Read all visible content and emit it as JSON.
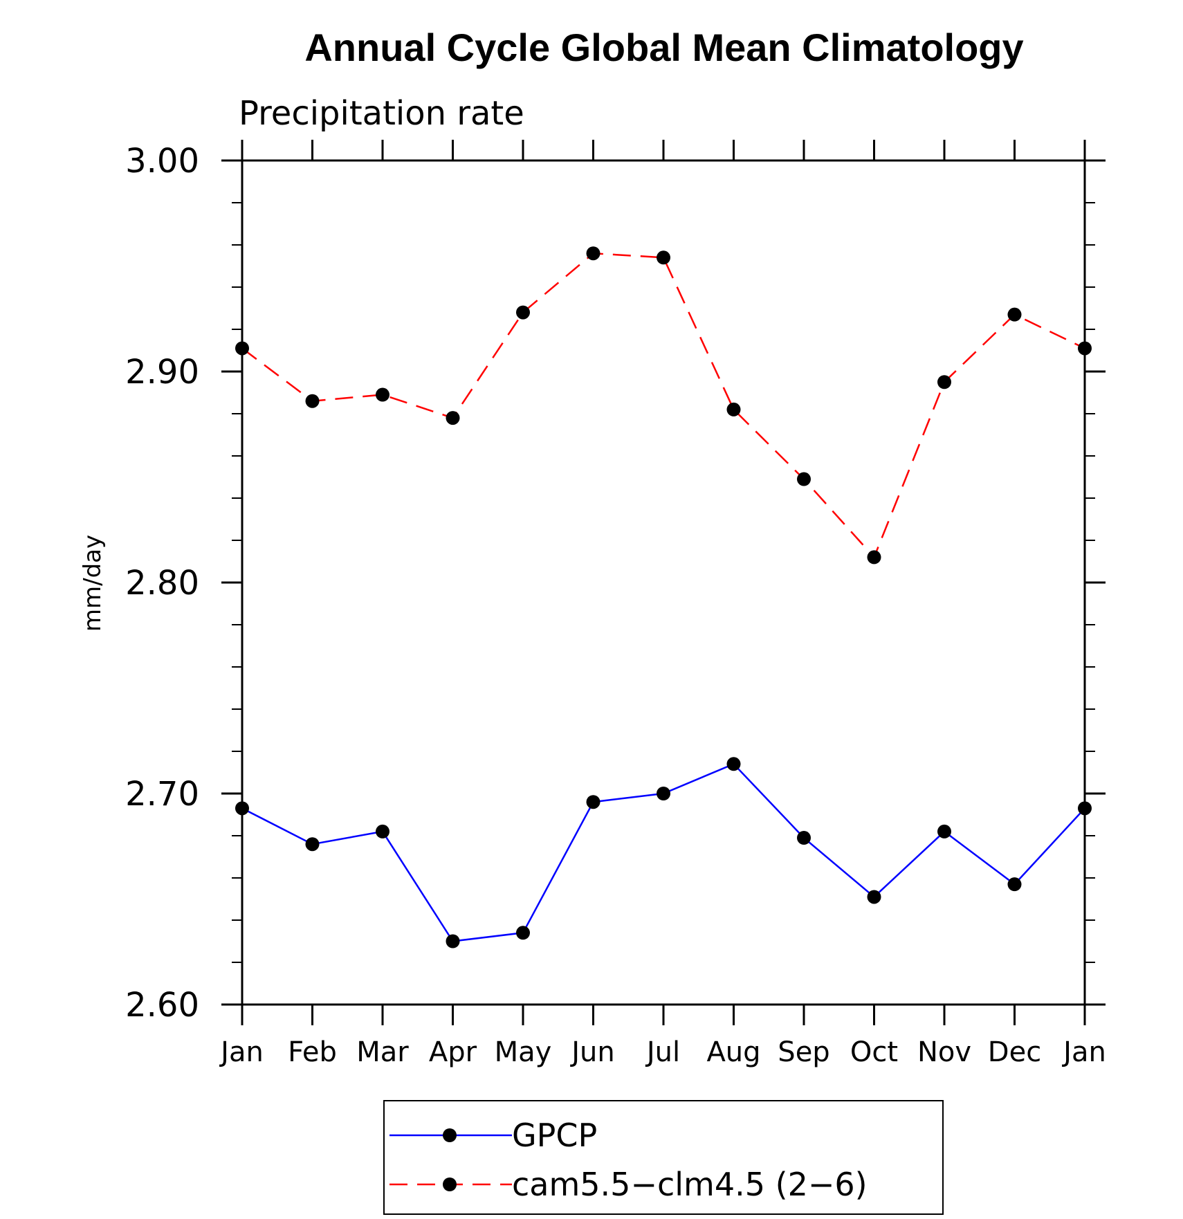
{
  "chart_data": {
    "type": "line",
    "title": "Annual Cycle Global Mean Climatology",
    "subtitle": "Precipitation rate",
    "ylabel": "mm/day",
    "xlabel": "",
    "ylim": [
      2.6,
      3.0
    ],
    "y_ticks": [
      "2.60",
      "2.70",
      "2.80",
      "2.90",
      "3.00"
    ],
    "categories": [
      "Jan",
      "Feb",
      "Mar",
      "Apr",
      "May",
      "Jun",
      "Jul",
      "Aug",
      "Sep",
      "Oct",
      "Nov",
      "Dec",
      "Jan"
    ],
    "legend_position": "bottom-center",
    "series": [
      {
        "name": "GPCP",
        "color": "#0000ff",
        "dash": "solid",
        "marker": "filled-circle",
        "values": [
          2.693,
          2.676,
          2.682,
          2.63,
          2.634,
          2.696,
          2.7,
          2.714,
          2.679,
          2.651,
          2.682,
          2.657,
          2.693
        ]
      },
      {
        "name": "cam5.5−clm4.5 (2−6)",
        "color": "#ff0000",
        "dash": "dashed",
        "marker": "filled-circle",
        "values": [
          2.911,
          2.886,
          2.889,
          2.878,
          2.928,
          2.956,
          2.954,
          2.882,
          2.849,
          2.812,
          2.895,
          2.927,
          2.911
        ]
      }
    ]
  }
}
